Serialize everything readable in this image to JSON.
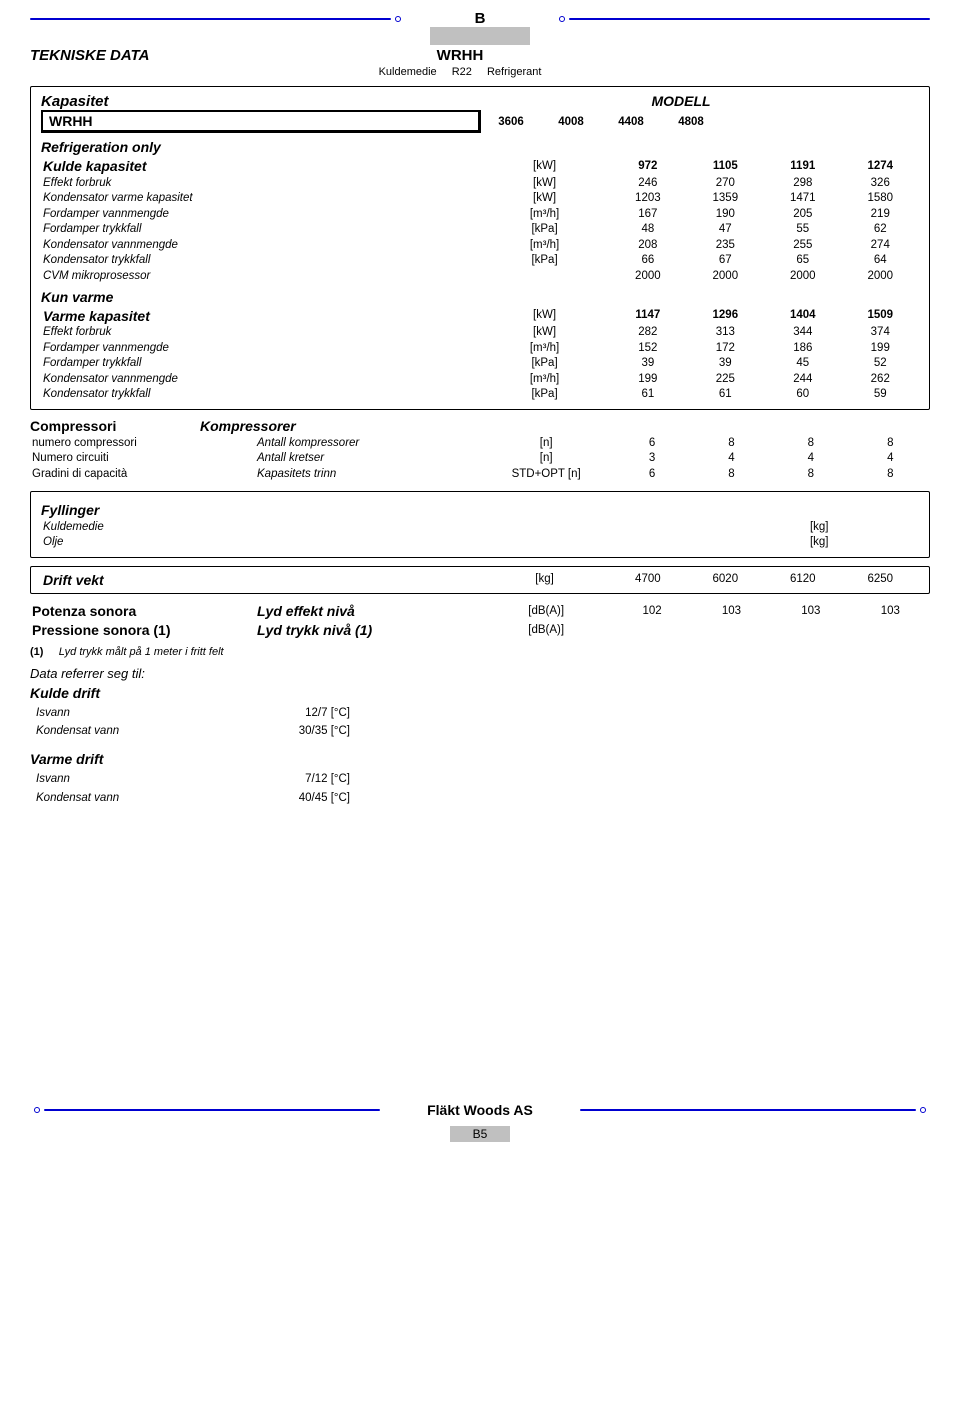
{
  "colors": {
    "blue": "#0000d0",
    "grey": "#c0c0c0",
    "text": "#000000",
    "bg": "#ffffff"
  },
  "header": {
    "section_letter": "B",
    "grey_bar": "",
    "title_left": "TEKNISKE DATA",
    "model": "WRHH",
    "subtitle_left": "Kuldemedie",
    "subtitle_mid": "R22",
    "subtitle_right": "Refrigerant"
  },
  "kapasitet": {
    "heading": "Kapasitet",
    "modell": "MODELL",
    "wrhh_label": "WRHH",
    "model_cols": [
      "3606",
      "4008",
      "4408",
      "4808"
    ],
    "ref_only": "Refrigeration only",
    "rows": [
      {
        "label": "Kulde kapasitet",
        "unit": "[kW]",
        "vals": [
          "972",
          "1105",
          "1191",
          "1274"
        ],
        "bold": true
      },
      {
        "label": "Effekt forbruk",
        "unit": "[kW]",
        "vals": [
          "246",
          "270",
          "298",
          "326"
        ]
      },
      {
        "label": "Kondensator varme kapasitet",
        "unit": "[kW]",
        "vals": [
          "1203",
          "1359",
          "1471",
          "1580"
        ]
      },
      {
        "label": "Fordamper vannmengde",
        "unit": "[m³/h]",
        "vals": [
          "167",
          "190",
          "205",
          "219"
        ]
      },
      {
        "label": "Fordamper trykkfall",
        "unit": "[kPa]",
        "vals": [
          "48",
          "47",
          "55",
          "62"
        ]
      },
      {
        "label": "Kondensator vannmengde",
        "unit": "[m³/h]",
        "vals": [
          "208",
          "235",
          "255",
          "274"
        ]
      },
      {
        "label": "Kondensator trykkfall",
        "unit": "[kPa]",
        "vals": [
          "66",
          "67",
          "65",
          "64"
        ]
      },
      {
        "label": "CVM mikroprosessor",
        "unit": "",
        "vals": [
          "2000",
          "2000",
          "2000",
          "2000"
        ]
      }
    ],
    "kun_varme": "Kun varme",
    "rows2": [
      {
        "label": "Varme kapasitet",
        "unit": "[kW]",
        "vals": [
          "1147",
          "1296",
          "1404",
          "1509"
        ],
        "bold": true
      },
      {
        "label": "Effekt forbruk",
        "unit": "[kW]",
        "vals": [
          "282",
          "313",
          "344",
          "374"
        ]
      },
      {
        "label": "Fordamper vannmengde",
        "unit": "[m³/h]",
        "vals": [
          "152",
          "172",
          "186",
          "199"
        ]
      },
      {
        "label": "Fordamper trykkfall",
        "unit": "[kPa]",
        "vals": [
          "39",
          "39",
          "45",
          "52"
        ]
      },
      {
        "label": "Kondensator vannmengde",
        "unit": "[m³/h]",
        "vals": [
          "199",
          "225",
          "244",
          "262"
        ]
      },
      {
        "label": "Kondensator trykkfall",
        "unit": "[kPa]",
        "vals": [
          "61",
          "61",
          "60",
          "59"
        ]
      }
    ]
  },
  "compressori": {
    "h1": "Compressori",
    "h2": "Kompressorer",
    "rows": [
      {
        "c1": "numero compressori",
        "c2": "Antall kompressorer",
        "unit": "[n]",
        "vals": [
          "6",
          "8",
          "8",
          "8"
        ]
      },
      {
        "c1": "Numero circuiti",
        "c2": "Antall kretser",
        "unit": "[n]",
        "vals": [
          "3",
          "4",
          "4",
          "4"
        ]
      },
      {
        "c1": "Gradini di capacità",
        "c2": "Kapasitets trinn",
        "unit": "STD+OPT [n]",
        "vals": [
          "6",
          "8",
          "8",
          "8"
        ]
      }
    ]
  },
  "fyllinger": {
    "heading": "Fyllinger",
    "rows": [
      {
        "label": "Kuldemedie",
        "unit": "[kg]"
      },
      {
        "label": "Olje",
        "unit": "[kg]"
      }
    ]
  },
  "drift": {
    "label": "Drift vekt",
    "unit": "[kg]",
    "vals": [
      "4700",
      "6020",
      "6120",
      "6250"
    ]
  },
  "sound": {
    "rows": [
      {
        "c1": "Potenza sonora",
        "c2": "Lyd effekt nivå",
        "unit": "[dB(A)]",
        "vals": [
          "102",
          "103",
          "103",
          "103"
        ]
      },
      {
        "c1": "Pressione sonora (1)",
        "c2": "Lyd trykk nivå (1)",
        "unit": "[dB(A)]",
        "vals": [
          "",
          "",
          "",
          ""
        ]
      }
    ],
    "footnote_num": "(1)",
    "footnote": "Lyd trykk målt på 1 meter i fritt felt"
  },
  "ref": {
    "heading": "Data referrer seg til:",
    "kulde": "Kulde drift",
    "kulde_rows": [
      {
        "l": "Isvann",
        "v": "12/7 [°C]"
      },
      {
        "l": "Kondensat vann",
        "v": "30/35 [°C]"
      }
    ],
    "varme": "Varme drift",
    "varme_rows": [
      {
        "l": "Isvann",
        "v": "7/12 [°C]"
      },
      {
        "l": "Kondensat vann",
        "v": "40/45 [°C]"
      }
    ]
  },
  "footer": {
    "brand": "Fläkt Woods AS",
    "page": "B5"
  }
}
